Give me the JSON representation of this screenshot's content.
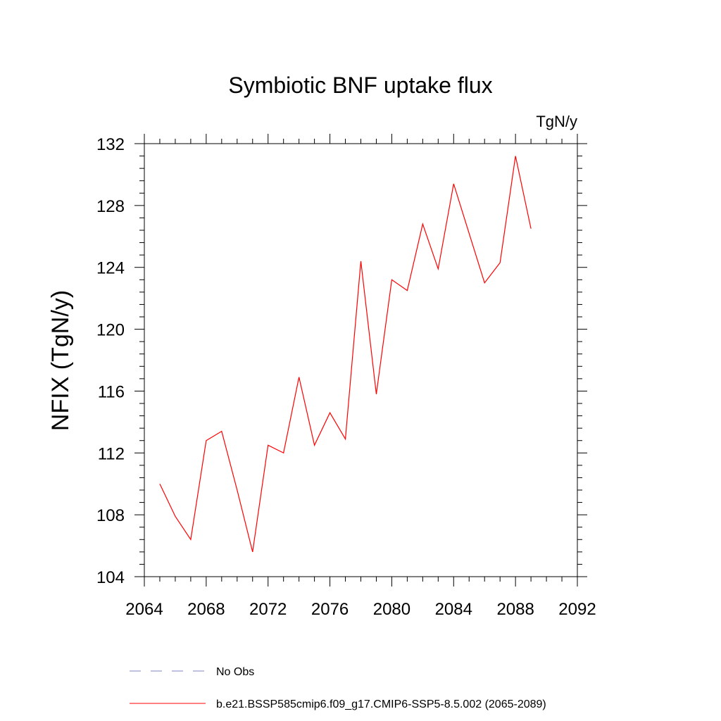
{
  "chart_data": {
    "type": "line",
    "title": "Symbiotic BNF uptake flux",
    "units": "TgN/y",
    "xlabel": "",
    "ylabel": "NFIX  (TgN/y)",
    "xlim": [
      2064,
      2092
    ],
    "ylim": [
      104,
      132
    ],
    "x_ticks": [
      2064,
      2068,
      2072,
      2076,
      2080,
      2084,
      2088,
      2092
    ],
    "y_ticks": [
      104,
      108,
      112,
      116,
      120,
      124,
      128,
      132
    ],
    "series": [
      {
        "name": "b.e21.BSSP585cmip6.f09_g17.CMIP6-SSP5-8.5.002 (2065-2089)",
        "color": "#ff0000",
        "style": "solid",
        "x": [
          2065,
          2066,
          2067,
          2068,
          2069,
          2070,
          2071,
          2072,
          2073,
          2074,
          2075,
          2076,
          2077,
          2078,
          2079,
          2080,
          2081,
          2082,
          2083,
          2084,
          2085,
          2086,
          2087,
          2088,
          2089
        ],
        "values": [
          110.0,
          107.9,
          106.4,
          112.8,
          113.4,
          109.6,
          105.6,
          112.5,
          112.0,
          116.9,
          112.5,
          114.6,
          112.9,
          124.4,
          115.8,
          123.2,
          122.5,
          126.8,
          123.9,
          129.4,
          126.2,
          123.0,
          124.3,
          131.2,
          126.5
        ]
      }
    ],
    "legend": [
      {
        "label": "No Obs",
        "color": "#8080c0",
        "style": "dashed"
      },
      {
        "label": "b.e21.BSSP585cmip6.f09_g17.CMIP6-SSP5-8.5.002 (2065-2089)",
        "color": "#ff0000",
        "style": "solid"
      }
    ]
  }
}
